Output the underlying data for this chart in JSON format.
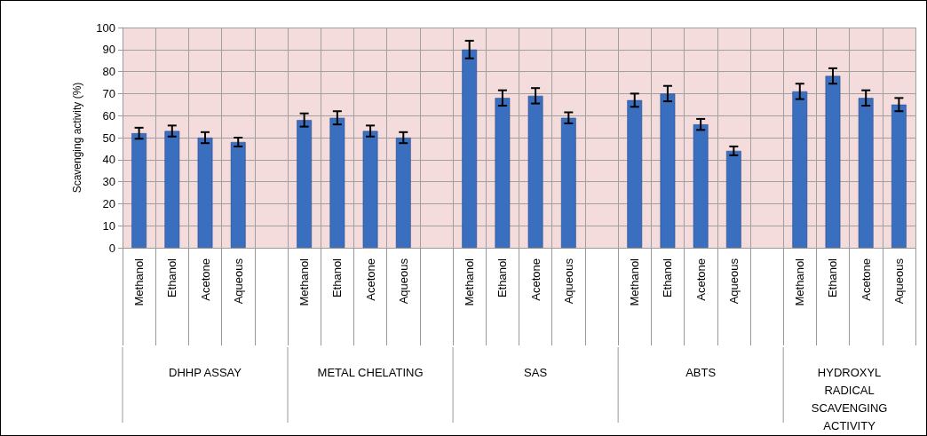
{
  "chart_data": {
    "type": "bar",
    "ylabel": "Scavenging activity (%)",
    "categories": [
      "Methanol",
      "Ethanol",
      "Acetone",
      "Aqueous",
      null,
      "Methanol",
      "Ethanol",
      "Acetone",
      "Aqueous",
      null,
      "Methanol",
      "Ethanol",
      "Acetone",
      "Aqueous",
      null,
      "Methanol",
      "Ethanol",
      "Acetone",
      "Aqueous",
      null,
      "Methanol",
      "Ethanol",
      "Acetone",
      "Aqueous"
    ],
    "values": [
      52,
      53,
      50,
      48,
      null,
      58,
      59,
      53,
      50,
      null,
      90,
      68,
      69,
      59,
      null,
      67,
      70,
      56,
      44,
      null,
      71,
      78,
      68,
      65
    ],
    "errors": [
      2.5,
      2.5,
      2.5,
      2,
      null,
      3,
      3,
      2.5,
      2.5,
      null,
      4,
      3.5,
      3.5,
      2.5,
      null,
      3,
      3.5,
      2.5,
      2,
      null,
      3.5,
      3.5,
      3.5,
      3
    ],
    "color": "#3a6fc0",
    "ylim": [
      0,
      100
    ],
    "yticks": [
      0,
      10,
      20,
      30,
      40,
      50,
      60,
      70,
      80,
      90,
      100
    ],
    "grid": true,
    "annotations": [
      "DHHP ASSAY",
      "METAL CHELATING",
      "SAS",
      "ABTS",
      "HYDROXYL\nRADICAL\nSCAVENGING\nACTIVITY"
    ]
  }
}
